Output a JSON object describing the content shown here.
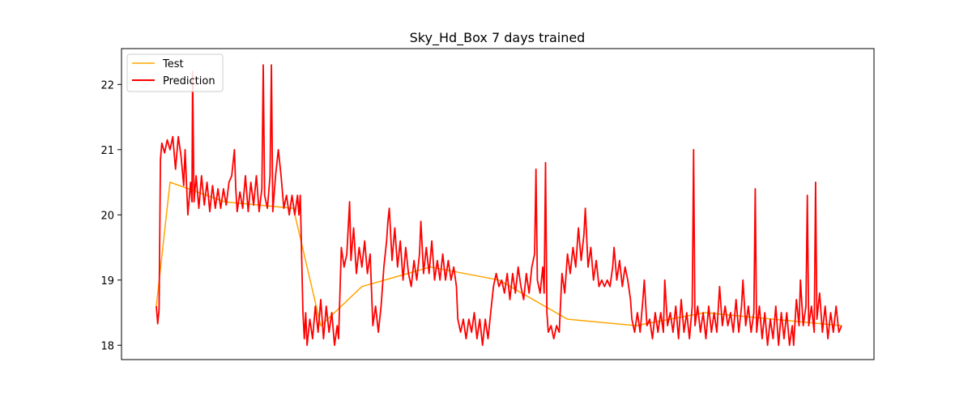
{
  "chart_data": {
    "type": "line",
    "title": "Sky_Hd_Box 7 days trained",
    "xlabel": "",
    "ylabel": "",
    "x_ticks_shown": false,
    "ylim": [
      17.78,
      22.55
    ],
    "y_ticks": [
      18,
      19,
      20,
      21,
      22
    ],
    "grid": false,
    "legend_position": "upper-left",
    "x_range": [
      0,
      1000
    ],
    "series": [
      {
        "name": "Test",
        "color": "#ffa500",
        "hidden_behind": "Prediction",
        "points": [
          [
            0,
            18.6
          ],
          [
            20,
            20.5
          ],
          [
            100,
            20.2
          ],
          [
            200,
            20.1
          ],
          [
            240,
            18.3
          ],
          [
            300,
            18.9
          ],
          [
            400,
            19.2
          ],
          [
            500,
            19.0
          ],
          [
            600,
            18.4
          ],
          [
            700,
            18.3
          ],
          [
            800,
            18.5
          ],
          [
            900,
            18.4
          ],
          [
            1000,
            18.3
          ]
        ]
      },
      {
        "name": "Prediction",
        "color": "#ff0000",
        "points": [
          [
            0,
            18.6
          ],
          [
            2,
            18.33
          ],
          [
            4,
            18.55
          ],
          [
            6,
            20.85
          ],
          [
            8,
            21.1
          ],
          [
            12,
            20.95
          ],
          [
            16,
            21.15
          ],
          [
            20,
            21.0
          ],
          [
            24,
            21.2
          ],
          [
            28,
            20.7
          ],
          [
            32,
            21.2
          ],
          [
            36,
            20.9
          ],
          [
            40,
            20.45
          ],
          [
            42,
            21.0
          ],
          [
            46,
            20.0
          ],
          [
            50,
            20.5
          ],
          [
            52,
            20.2
          ],
          [
            53,
            22.2
          ],
          [
            55,
            20.2
          ],
          [
            58,
            20.6
          ],
          [
            62,
            20.1
          ],
          [
            66,
            20.6
          ],
          [
            70,
            20.15
          ],
          [
            74,
            20.5
          ],
          [
            78,
            20.05
          ],
          [
            82,
            20.45
          ],
          [
            86,
            20.1
          ],
          [
            90,
            20.4
          ],
          [
            94,
            20.1
          ],
          [
            98,
            20.4
          ],
          [
            102,
            20.15
          ],
          [
            106,
            20.5
          ],
          [
            110,
            20.6
          ],
          [
            114,
            21.0
          ],
          [
            116,
            20.4
          ],
          [
            118,
            20.05
          ],
          [
            122,
            20.35
          ],
          [
            126,
            20.1
          ],
          [
            130,
            20.6
          ],
          [
            134,
            20.05
          ],
          [
            138,
            20.5
          ],
          [
            142,
            20.15
          ],
          [
            146,
            20.6
          ],
          [
            150,
            20.05
          ],
          [
            154,
            20.4
          ],
          [
            156,
            22.3
          ],
          [
            158,
            20.3
          ],
          [
            162,
            20.1
          ],
          [
            166,
            20.6
          ],
          [
            168,
            22.3
          ],
          [
            170,
            20.05
          ],
          [
            174,
            20.6
          ],
          [
            178,
            21.0
          ],
          [
            182,
            20.6
          ],
          [
            186,
            20.1
          ],
          [
            190,
            20.3
          ],
          [
            194,
            20.0
          ],
          [
            198,
            20.3
          ],
          [
            202,
            20.0
          ],
          [
            206,
            20.3
          ],
          [
            208,
            20.0
          ],
          [
            210,
            20.3
          ],
          [
            214,
            18.5
          ],
          [
            216,
            18.1
          ],
          [
            218,
            18.5
          ],
          [
            220,
            18.0
          ],
          [
            224,
            18.4
          ],
          [
            228,
            18.1
          ],
          [
            232,
            18.6
          ],
          [
            236,
            18.2
          ],
          [
            240,
            18.7
          ],
          [
            244,
            18.1
          ],
          [
            248,
            18.6
          ],
          [
            252,
            18.2
          ],
          [
            256,
            18.5
          ],
          [
            260,
            18.0
          ],
          [
            264,
            18.3
          ],
          [
            266,
            18.1
          ],
          [
            270,
            19.5
          ],
          [
            274,
            19.2
          ],
          [
            278,
            19.4
          ],
          [
            282,
            20.2
          ],
          [
            284,
            19.3
          ],
          [
            288,
            19.8
          ],
          [
            292,
            19.1
          ],
          [
            296,
            19.5
          ],
          [
            300,
            19.2
          ],
          [
            304,
            19.6
          ],
          [
            308,
            19.1
          ],
          [
            312,
            19.4
          ],
          [
            316,
            18.3
          ],
          [
            320,
            18.6
          ],
          [
            324,
            18.2
          ],
          [
            328,
            18.6
          ],
          [
            332,
            19.2
          ],
          [
            336,
            19.6
          ],
          [
            338,
            19.9
          ],
          [
            340,
            20.1
          ],
          [
            344,
            19.3
          ],
          [
            348,
            19.8
          ],
          [
            352,
            19.2
          ],
          [
            356,
            19.6
          ],
          [
            360,
            19.0
          ],
          [
            364,
            19.5
          ],
          [
            368,
            19.1
          ],
          [
            372,
            18.9
          ],
          [
            376,
            19.3
          ],
          [
            380,
            19.0
          ],
          [
            384,
            19.4
          ],
          [
            386,
            19.9
          ],
          [
            390,
            19.1
          ],
          [
            394,
            19.5
          ],
          [
            398,
            19.1
          ],
          [
            402,
            19.6
          ],
          [
            406,
            19.0
          ],
          [
            410,
            19.3
          ],
          [
            414,
            19.0
          ],
          [
            418,
            19.4
          ],
          [
            422,
            19.0
          ],
          [
            426,
            19.3
          ],
          [
            430,
            19.0
          ],
          [
            434,
            19.2
          ],
          [
            438,
            18.9
          ],
          [
            440,
            18.4
          ],
          [
            444,
            18.2
          ],
          [
            448,
            18.4
          ],
          [
            452,
            18.1
          ],
          [
            456,
            18.4
          ],
          [
            460,
            18.2
          ],
          [
            464,
            18.5
          ],
          [
            468,
            18.1
          ],
          [
            472,
            18.4
          ],
          [
            476,
            18.0
          ],
          [
            480,
            18.4
          ],
          [
            484,
            18.1
          ],
          [
            488,
            18.5
          ],
          [
            492,
            18.9
          ],
          [
            496,
            19.1
          ],
          [
            500,
            18.9
          ],
          [
            504,
            19.0
          ],
          [
            508,
            18.8
          ],
          [
            512,
            19.1
          ],
          [
            516,
            18.7
          ],
          [
            520,
            19.1
          ],
          [
            524,
            18.8
          ],
          [
            528,
            19.2
          ],
          [
            532,
            18.9
          ],
          [
            536,
            18.7
          ],
          [
            540,
            19.1
          ],
          [
            544,
            18.8
          ],
          [
            548,
            19.2
          ],
          [
            552,
            19.4
          ],
          [
            554,
            20.7
          ],
          [
            556,
            19.0
          ],
          [
            560,
            18.8
          ],
          [
            564,
            19.2
          ],
          [
            566,
            18.8
          ],
          [
            568,
            20.8
          ],
          [
            570,
            18.5
          ],
          [
            572,
            18.2
          ],
          [
            576,
            18.3
          ],
          [
            580,
            18.1
          ],
          [
            584,
            18.3
          ],
          [
            588,
            18.2
          ],
          [
            592,
            19.1
          ],
          [
            596,
            18.8
          ],
          [
            600,
            19.4
          ],
          [
            604,
            19.1
          ],
          [
            608,
            19.5
          ],
          [
            612,
            19.2
          ],
          [
            616,
            19.8
          ],
          [
            620,
            19.3
          ],
          [
            624,
            19.7
          ],
          [
            626,
            20.1
          ],
          [
            630,
            19.2
          ],
          [
            634,
            19.5
          ],
          [
            638,
            19.0
          ],
          [
            642,
            19.3
          ],
          [
            646,
            18.9
          ],
          [
            650,
            19.0
          ],
          [
            654,
            18.9
          ],
          [
            658,
            19.0
          ],
          [
            662,
            18.9
          ],
          [
            666,
            19.2
          ],
          [
            668,
            19.5
          ],
          [
            672,
            19.0
          ],
          [
            676,
            19.3
          ],
          [
            680,
            18.9
          ],
          [
            684,
            19.2
          ],
          [
            688,
            19.0
          ],
          [
            692,
            18.7
          ],
          [
            694,
            18.4
          ],
          [
            698,
            18.2
          ],
          [
            702,
            18.5
          ],
          [
            706,
            18.2
          ],
          [
            710,
            18.7
          ],
          [
            712,
            19.0
          ],
          [
            716,
            18.3
          ],
          [
            720,
            18.4
          ],
          [
            724,
            18.1
          ],
          [
            728,
            18.5
          ],
          [
            732,
            18.2
          ],
          [
            736,
            18.5
          ],
          [
            740,
            18.2
          ],
          [
            742,
            19.0
          ],
          [
            746,
            18.3
          ],
          [
            750,
            18.5
          ],
          [
            754,
            18.2
          ],
          [
            758,
            18.6
          ],
          [
            762,
            18.1
          ],
          [
            766,
            18.7
          ],
          [
            770,
            18.2
          ],
          [
            774,
            18.5
          ],
          [
            778,
            18.1
          ],
          [
            782,
            18.6
          ],
          [
            784,
            21.0
          ],
          [
            786,
            18.3
          ],
          [
            790,
            18.6
          ],
          [
            794,
            18.2
          ],
          [
            798,
            18.5
          ],
          [
            802,
            18.1
          ],
          [
            806,
            18.6
          ],
          [
            810,
            18.2
          ],
          [
            814,
            18.5
          ],
          [
            818,
            18.2
          ],
          [
            822,
            18.9
          ],
          [
            826,
            18.3
          ],
          [
            830,
            18.6
          ],
          [
            834,
            18.3
          ],
          [
            838,
            18.5
          ],
          [
            842,
            18.2
          ],
          [
            846,
            18.7
          ],
          [
            850,
            18.2
          ],
          [
            854,
            18.6
          ],
          [
            856,
            19.0
          ],
          [
            860,
            18.3
          ],
          [
            864,
            18.6
          ],
          [
            868,
            18.2
          ],
          [
            872,
            18.5
          ],
          [
            874,
            20.4
          ],
          [
            876,
            18.2
          ],
          [
            880,
            18.6
          ],
          [
            884,
            18.1
          ],
          [
            888,
            18.5
          ],
          [
            892,
            18.0
          ],
          [
            896,
            18.4
          ],
          [
            900,
            18.1
          ],
          [
            904,
            18.6
          ],
          [
            908,
            18.0
          ],
          [
            912,
            18.5
          ],
          [
            916,
            18.1
          ],
          [
            920,
            18.5
          ],
          [
            924,
            18.0
          ],
          [
            928,
            18.3
          ],
          [
            930,
            18.0
          ],
          [
            934,
            18.7
          ],
          [
            938,
            18.3
          ],
          [
            940,
            19.0
          ],
          [
            944,
            18.3
          ],
          [
            948,
            18.6
          ],
          [
            950,
            20.3
          ],
          [
            952,
            18.3
          ],
          [
            956,
            18.6
          ],
          [
            960,
            18.2
          ],
          [
            962,
            20.5
          ],
          [
            964,
            18.4
          ],
          [
            968,
            18.8
          ],
          [
            972,
            18.2
          ],
          [
            976,
            18.6
          ],
          [
            980,
            18.1
          ],
          [
            984,
            18.5
          ],
          [
            988,
            18.2
          ],
          [
            992,
            18.6
          ],
          [
            996,
            18.2
          ],
          [
            1000,
            18.3
          ]
        ]
      }
    ]
  }
}
